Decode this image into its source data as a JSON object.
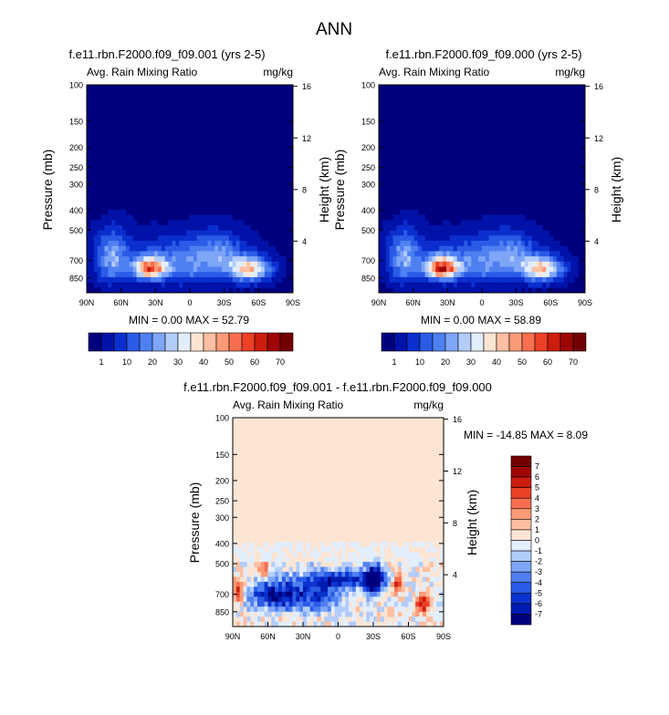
{
  "figure_title": "ANN",
  "colors": {
    "levels_abs": [
      "#00007f",
      "#0012a8",
      "#0b2fce",
      "#2b5be6",
      "#4f80f1",
      "#7fa6f7",
      "#b3cdfb",
      "#e3eefd",
      "#fde5d4",
      "#fdbfa3",
      "#fb9a77",
      "#f76f4f",
      "#ec4027",
      "#cc1d0d",
      "#9e0505",
      "#730000"
    ],
    "levels_diff": [
      "#00007f",
      "#001bb0",
      "#0b33d0",
      "#2b5be6",
      "#4f80f1",
      "#7fa6f7",
      "#b3cdfb",
      "#e3eefd",
      "#fde5d4",
      "#fdbfa3",
      "#fb9a77",
      "#f76f4f",
      "#ec4027",
      "#cc1d0d",
      "#9e0505",
      "#730000"
    ]
  },
  "chart_data": [
    {
      "type": "heatmap",
      "title": "f.e11.rbn.F2000.f09_f09.001 (yrs 2-5)",
      "left_label": "Avg. Rain Mixing Ratio",
      "right_label": "mg/kg",
      "xlabel": "",
      "ylabel": "Pressure (mb)",
      "y2label": "Height (km)",
      "x_ticks": [
        "90N",
        "60N",
        "30N",
        "0",
        "30S",
        "60S",
        "90S"
      ],
      "y_ticks": [
        "100",
        "150",
        "200",
        "250",
        "300",
        "400",
        "500",
        "700",
        "850"
      ],
      "y2_ticks": [
        "16",
        "12",
        "8",
        "4"
      ],
      "stats": "MIN =  0.00   MAX =  52.79",
      "colorbar_labels": [
        "1",
        "10",
        "20",
        "30",
        "40",
        "50",
        "60",
        "70"
      ],
      "max_value": 52.79,
      "cells": [
        {
          "lat": -52,
          "p": 760,
          "v": 38
        },
        {
          "lat": 35,
          "p": 760,
          "v": 52
        },
        {
          "lat": 5,
          "p": 700,
          "v": 25
        },
        {
          "lat": 70,
          "p": 650,
          "v": 20
        }
      ]
    },
    {
      "type": "heatmap",
      "title": "f.e11.rbn.F2000.f09_f09.000 (yrs 2-5)",
      "left_label": "Avg. Rain Mixing Ratio",
      "right_label": "mg/kg",
      "xlabel": "",
      "ylabel": "Pressure (mb)",
      "y2label": "Height (km)",
      "x_ticks": [
        "90N",
        "60N",
        "30N",
        "0",
        "30S",
        "60S",
        "90S"
      ],
      "y_ticks": [
        "100",
        "150",
        "200",
        "250",
        "300",
        "400",
        "500",
        "700",
        "850"
      ],
      "y2_ticks": [
        "16",
        "12",
        "8",
        "4"
      ],
      "stats": "MIN =  0.00   MAX =  58.89",
      "colorbar_labels": [
        "1",
        "10",
        "20",
        "30",
        "40",
        "50",
        "60",
        "70"
      ],
      "max_value": 58.89
    },
    {
      "type": "heatmap",
      "title": "f.e11.rbn.F2000.f09_f09.001 - f.e11.rbn.F2000.f09_f09.000",
      "left_label": "Avg. Rain Mixing Ratio",
      "right_label": "mg/kg",
      "xlabel": "",
      "ylabel": "Pressure (mb)",
      "y2label": "Height (km)",
      "x_ticks": [
        "90N",
        "60N",
        "30N",
        "0",
        "30S",
        "60S",
        "90S"
      ],
      "y_ticks": [
        "100",
        "150",
        "200",
        "250",
        "300",
        "400",
        "500",
        "700",
        "850"
      ],
      "y2_ticks": [
        "16",
        "12",
        "8",
        "4"
      ],
      "stats": "MIN = -14.85   MAX =   8.09",
      "colorbar_labels": [
        "7",
        "6",
        "5",
        "4",
        "3",
        "2",
        "1",
        "0",
        "-1",
        "-2",
        "-3",
        "-4",
        "-5",
        "-6",
        "-7"
      ],
      "min_value": -14.85,
      "max_value": 8.09
    }
  ]
}
